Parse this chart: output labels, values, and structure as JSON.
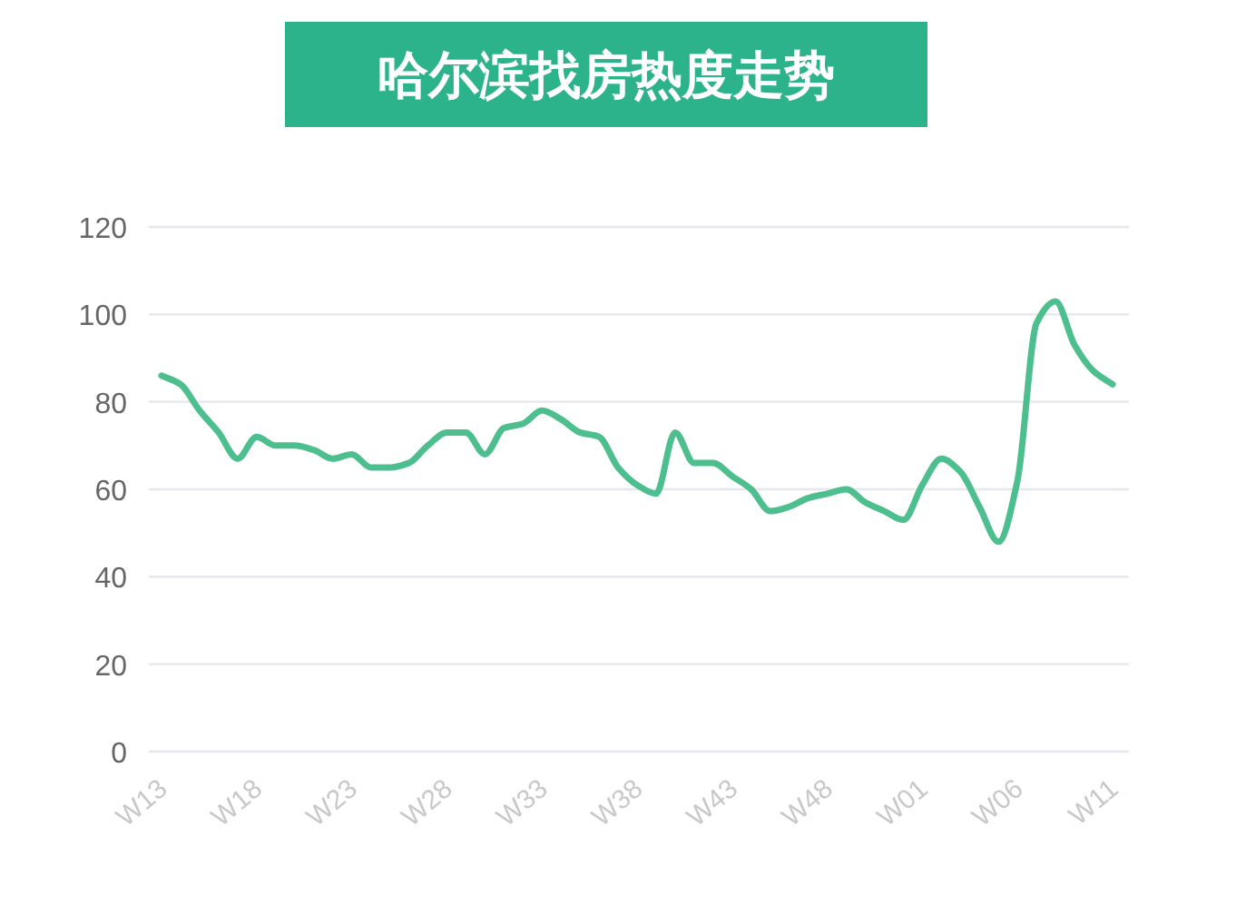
{
  "chart_data": {
    "type": "line",
    "title": "哈尔滨找房热度走势",
    "categories": [
      "W13",
      null,
      null,
      null,
      null,
      "W18",
      null,
      null,
      null,
      null,
      "W23",
      null,
      null,
      null,
      null,
      "W28",
      null,
      null,
      null,
      null,
      "W33",
      null,
      null,
      null,
      null,
      "W38",
      null,
      null,
      null,
      null,
      "W43",
      null,
      null,
      null,
      null,
      "W48",
      null,
      null,
      null,
      null,
      "W01",
      null,
      null,
      null,
      null,
      "W06",
      null,
      null,
      null,
      null,
      "W11"
    ],
    "series": [
      {
        "color": "#4dbf8f",
        "values": [
          86,
          84,
          78,
          73,
          67,
          72,
          70,
          70,
          69,
          67,
          68,
          65,
          65,
          66,
          70,
          73,
          73,
          68,
          74,
          75,
          78,
          76,
          73,
          72,
          65,
          61,
          59,
          73,
          66,
          66,
          63,
          60,
          55,
          56,
          58,
          59,
          60,
          57,
          55,
          53,
          61,
          67,
          64,
          56,
          48,
          62,
          98,
          103,
          93,
          87,
          84
        ]
      }
    ],
    "ylim": [
      0,
      120
    ],
    "yticks": [
      0,
      20,
      40,
      60,
      80,
      100,
      120
    ],
    "grid": "y"
  }
}
